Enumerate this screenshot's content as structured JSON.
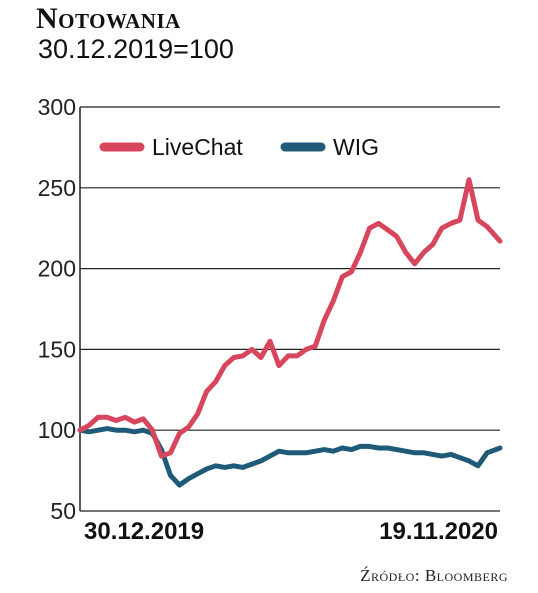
{
  "header": {
    "title": "Notowania",
    "subtitle": "30.12.2019=100"
  },
  "source": "Źródło: Bloomberg",
  "colors": {
    "livechat": "#d8465e",
    "wig": "#1f5a78",
    "grid": "#222222"
  },
  "chart_data": {
    "type": "line",
    "title": "Notowania",
    "subtitle": "30.12.2019=100",
    "xlabel": "",
    "ylabel": "",
    "ylim": [
      50,
      300
    ],
    "yticks": [
      50,
      100,
      150,
      200,
      250,
      300
    ],
    "xtick_labels": [
      "30.12.2019",
      "19.11.2020"
    ],
    "x_range": [
      "2019-12-30",
      "2020-11-19"
    ],
    "grid": true,
    "legend": "top-left",
    "series": [
      {
        "name": "LiveChat",
        "x": [
          "2019-12-30",
          "2020-01-06",
          "2020-01-13",
          "2020-01-20",
          "2020-01-27",
          "2020-02-03",
          "2020-02-10",
          "2020-02-17",
          "2020-02-24",
          "2020-03-02",
          "2020-03-09",
          "2020-03-16",
          "2020-03-23",
          "2020-03-30",
          "2020-04-06",
          "2020-04-13",
          "2020-04-20",
          "2020-04-27",
          "2020-05-04",
          "2020-05-11",
          "2020-05-18",
          "2020-05-25",
          "2020-06-01",
          "2020-06-08",
          "2020-06-15",
          "2020-06-22",
          "2020-06-29",
          "2020-07-06",
          "2020-07-13",
          "2020-07-20",
          "2020-07-27",
          "2020-08-03",
          "2020-08-10",
          "2020-08-17",
          "2020-08-24",
          "2020-08-31",
          "2020-09-07",
          "2020-09-14",
          "2020-09-21",
          "2020-09-28",
          "2020-10-05",
          "2020-10-12",
          "2020-10-19",
          "2020-10-26",
          "2020-11-02",
          "2020-11-09",
          "2020-11-19"
        ],
        "values": [
          100,
          103,
          108,
          108,
          106,
          108,
          105,
          107,
          100,
          84,
          86,
          98,
          102,
          110,
          124,
          130,
          140,
          145,
          146,
          150,
          145,
          155,
          140,
          146,
          146,
          150,
          152,
          168,
          180,
          195,
          198,
          210,
          225,
          228,
          224,
          220,
          210,
          203,
          210,
          215,
          225,
          228,
          230,
          255,
          230,
          226,
          217
        ]
      },
      {
        "name": "WIG",
        "x": [
          "2019-12-30",
          "2020-01-06",
          "2020-01-13",
          "2020-01-20",
          "2020-01-27",
          "2020-02-03",
          "2020-02-10",
          "2020-02-17",
          "2020-02-24",
          "2020-03-02",
          "2020-03-09",
          "2020-03-16",
          "2020-03-23",
          "2020-03-30",
          "2020-04-06",
          "2020-04-13",
          "2020-04-20",
          "2020-04-27",
          "2020-05-04",
          "2020-05-11",
          "2020-05-18",
          "2020-05-25",
          "2020-06-01",
          "2020-06-08",
          "2020-06-15",
          "2020-06-22",
          "2020-06-29",
          "2020-07-06",
          "2020-07-13",
          "2020-07-20",
          "2020-07-27",
          "2020-08-03",
          "2020-08-10",
          "2020-08-17",
          "2020-08-24",
          "2020-08-31",
          "2020-09-07",
          "2020-09-14",
          "2020-09-21",
          "2020-09-28",
          "2020-10-05",
          "2020-10-12",
          "2020-10-19",
          "2020-10-26",
          "2020-11-02",
          "2020-11-09",
          "2020-11-19"
        ],
        "values": [
          100,
          99,
          100,
          101,
          100,
          100,
          99,
          100,
          98,
          88,
          72,
          66,
          70,
          73,
          76,
          78,
          77,
          78,
          77,
          79,
          81,
          84,
          87,
          86,
          86,
          86,
          87,
          88,
          87,
          89,
          88,
          90,
          90,
          89,
          89,
          88,
          87,
          86,
          86,
          85,
          84,
          85,
          83,
          81,
          78,
          86,
          89
        ]
      }
    ]
  }
}
